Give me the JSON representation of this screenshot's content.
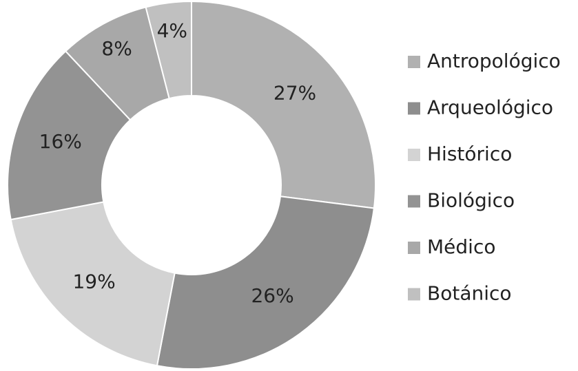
{
  "chart_data": {
    "type": "donut",
    "categories": [
      "Antropológico",
      "Arqueológico",
      "Histórico",
      "Biológico",
      "Médico",
      "Botánico"
    ],
    "values": [
      27,
      26,
      19,
      16,
      8,
      4
    ],
    "value_labels": [
      "27%",
      "26%",
      "19%",
      "16%",
      "8%",
      "4%"
    ],
    "colors": [
      "#b1b1b1",
      "#8e8e8e",
      "#d3d3d3",
      "#939393",
      "#a8a8a8",
      "#c0c0c0"
    ],
    "legend": "right"
  }
}
